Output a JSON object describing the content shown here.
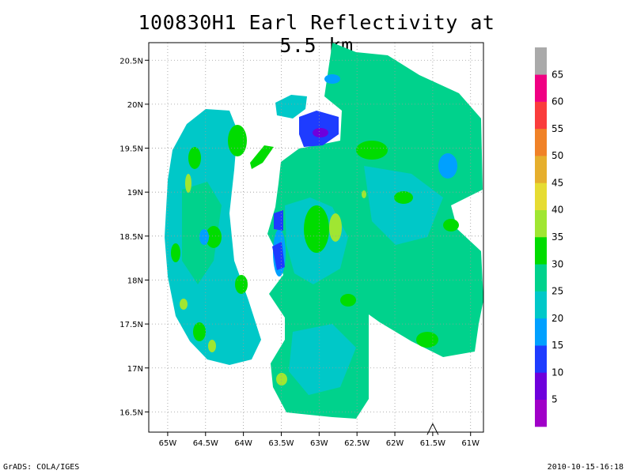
{
  "chart_data": {
    "type": "heatmap",
    "title": "100830H1 Earl Reflectivity at 5.5 km",
    "xlim": [
      -65.25,
      -60.83
    ],
    "ylim": [
      16.27,
      20.7
    ],
    "x_ticks": [
      -65,
      -64.5,
      -64,
      -63.5,
      -63,
      -62.5,
      -62,
      -61.5,
      -61
    ],
    "y_ticks": [
      16.5,
      17,
      17.5,
      18,
      18.5,
      19,
      19.5,
      20,
      20.5
    ],
    "x_tick_labels": [
      "65W",
      "64.5W",
      "64W",
      "63.5W",
      "63W",
      "62.5W",
      "62W",
      "61.5W",
      "61W"
    ],
    "y_tick_labels": [
      "16.5N",
      "17N",
      "17.5N",
      "18N",
      "18.5N",
      "19N",
      "19.5N",
      "20N",
      "20.5N"
    ],
    "grid": true,
    "colorbar": {
      "levels": [
        5,
        10,
        15,
        20,
        25,
        30,
        35,
        40,
        45,
        50,
        55,
        60,
        65
      ],
      "colors": [
        "#a000c8",
        "#6e00dc",
        "#1e3cff",
        "#00a0ff",
        "#00c8c8",
        "#00d28c",
        "#00dc00",
        "#a0e632",
        "#e6dc32",
        "#e6af2d",
        "#f08228",
        "#fa3c3c",
        "#f00082",
        "#aaaaaa"
      ]
    },
    "fill_colors": {
      "dominant": "#00d28c",
      "secondary": "#00c8c8",
      "strong": "#00dc00",
      "peak": "#a0e632",
      "weak": "#00a0ff",
      "weakest": "#1e3cff",
      "min": "#6e00dc"
    },
    "marker": {
      "lon": -61.5,
      "lat": 16.33,
      "symbol": "triangle-outline"
    }
  },
  "footer": {
    "left": "GrADS: COLA/IGES",
    "right": "2010-10-15-16:18"
  }
}
